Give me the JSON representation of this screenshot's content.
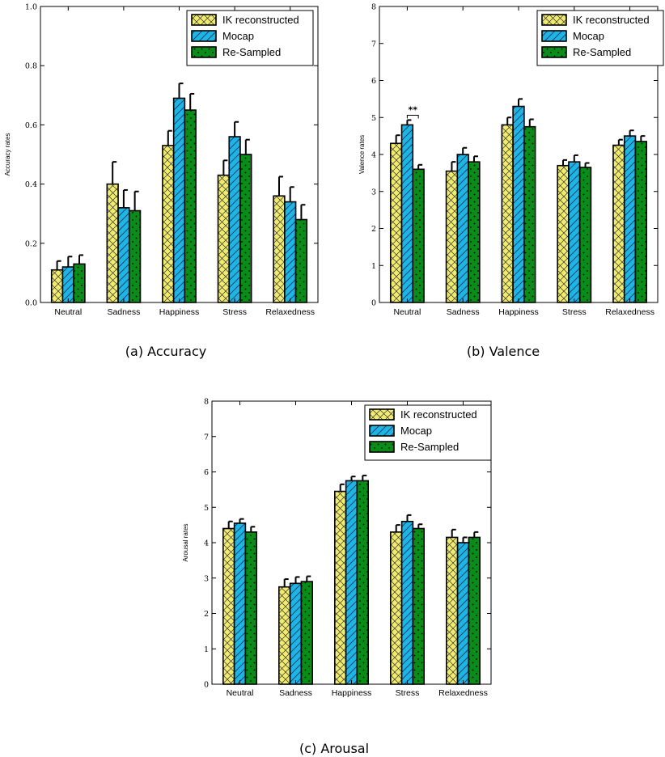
{
  "chart_data": [
    {
      "type": "bar",
      "caption": "(a) Accuracy",
      "ylabel": "Accuracy rates",
      "xlabel": "",
      "ylim": [
        0,
        1.0
      ],
      "yticks": [
        "0.0",
        "0.2",
        "0.4",
        "0.6",
        "0.8",
        "1.0"
      ],
      "categories": [
        "Neutral",
        "Sadness",
        "Happiness",
        "Stress",
        "Relaxedness"
      ],
      "series": [
        {
          "name": "IK reconstructed",
          "color": "#f0ea6e",
          "pattern": "crosshatch",
          "values": [
            0.11,
            0.4,
            0.53,
            0.43,
            0.36
          ],
          "errors": [
            0.03,
            0.075,
            0.05,
            0.05,
            0.065
          ]
        },
        {
          "name": "Mocap",
          "color": "#1eb4e6",
          "pattern": "diagonal",
          "values": [
            0.12,
            0.32,
            0.69,
            0.56,
            0.34
          ],
          "errors": [
            0.035,
            0.06,
            0.05,
            0.05,
            0.05
          ]
        },
        {
          "name": "Re-Sampled",
          "color": "#0a8c19",
          "pattern": "dots",
          "values": [
            0.13,
            0.31,
            0.65,
            0.5,
            0.28
          ],
          "errors": [
            0.03,
            0.065,
            0.055,
            0.05,
            0.05
          ]
        }
      ],
      "legend": "top-right",
      "annotations": []
    },
    {
      "type": "bar",
      "caption": "(b) Valence",
      "ylabel": "Valence rates",
      "xlabel": "",
      "ylim": [
        0,
        8
      ],
      "yticks": [
        "0",
        "1",
        "2",
        "3",
        "4",
        "5",
        "6",
        "7",
        "8"
      ],
      "categories": [
        "Neutral",
        "Sadness",
        "Happiness",
        "Stress",
        "Relaxedness"
      ],
      "series": [
        {
          "name": "IK reconstructed",
          "color": "#f0ea6e",
          "pattern": "crosshatch",
          "values": [
            4.3,
            3.55,
            4.8,
            3.7,
            4.25
          ],
          "errors": [
            0.22,
            0.25,
            0.2,
            0.15,
            0.15
          ]
        },
        {
          "name": "Mocap",
          "color": "#1eb4e6",
          "pattern": "diagonal",
          "values": [
            4.8,
            4.0,
            5.3,
            3.8,
            4.5
          ],
          "errors": [
            0.13,
            0.18,
            0.2,
            0.18,
            0.15
          ]
        },
        {
          "name": "Re-Sampled",
          "color": "#0a8c19",
          "pattern": "dots",
          "values": [
            3.6,
            3.8,
            4.75,
            3.65,
            4.35
          ],
          "errors": [
            0.12,
            0.15,
            0.2,
            0.12,
            0.15
          ]
        }
      ],
      "legend": "top-right",
      "annotations": [
        {
          "text": "**",
          "category": "Neutral"
        }
      ]
    },
    {
      "type": "bar",
      "caption": "(c) Arousal",
      "ylabel": "Arousal rates",
      "xlabel": "",
      "ylim": [
        0,
        8
      ],
      "yticks": [
        "0",
        "1",
        "2",
        "3",
        "4",
        "5",
        "6",
        "7",
        "8"
      ],
      "categories": [
        "Neutral",
        "Sadness",
        "Happiness",
        "Stress",
        "Relaxedness"
      ],
      "series": [
        {
          "name": "IK reconstructed",
          "color": "#f0ea6e",
          "pattern": "crosshatch",
          "values": [
            4.4,
            2.75,
            5.45,
            4.3,
            4.15
          ],
          "errors": [
            0.2,
            0.22,
            0.2,
            0.2,
            0.22
          ]
        },
        {
          "name": "Mocap",
          "color": "#1eb4e6",
          "pattern": "diagonal",
          "values": [
            4.55,
            2.85,
            5.75,
            4.6,
            4.0
          ],
          "errors": [
            0.12,
            0.18,
            0.12,
            0.18,
            0.15
          ]
        },
        {
          "name": "Re-Sampled",
          "color": "#0a8c19",
          "pattern": "dots",
          "values": [
            4.3,
            2.9,
            5.75,
            4.4,
            4.15
          ],
          "errors": [
            0.15,
            0.15,
            0.15,
            0.12,
            0.15
          ]
        }
      ],
      "legend": "top-right",
      "annotations": []
    }
  ]
}
